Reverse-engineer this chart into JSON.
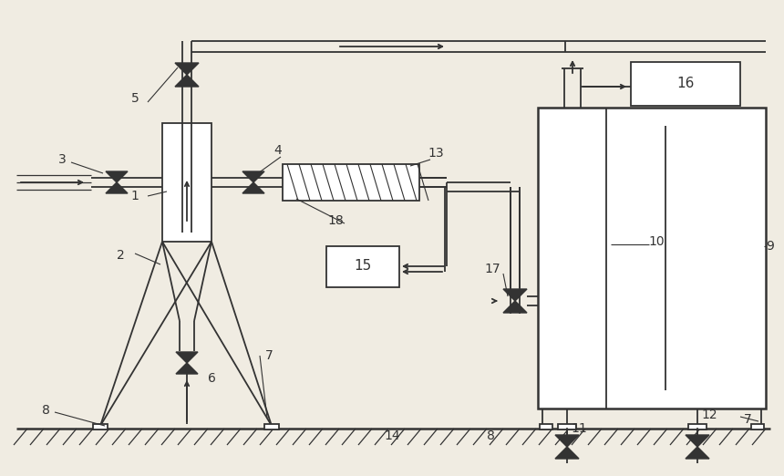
{
  "bg_color": "#f0ece2",
  "line_color": "#333333",
  "lw": 1.3,
  "fig_width": 8.6,
  "fig_height": 5.22
}
